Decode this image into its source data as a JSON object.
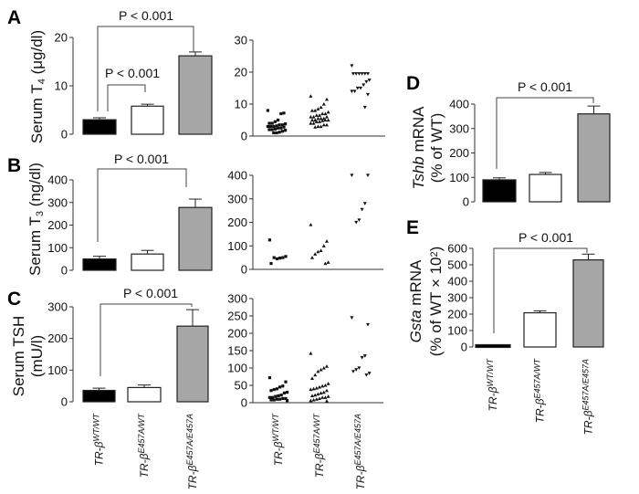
{
  "panel_labels": [
    "A",
    "B",
    "C",
    "D",
    "E"
  ],
  "colors": {
    "wt": "#000000",
    "het": "#ffffff",
    "homo": "#a6a6a6",
    "axis": "#333333"
  },
  "categories": [
    {
      "text": "TR-β",
      "sup": "WT/WT"
    },
    {
      "text": "TR-β",
      "sup": "E457A/WT"
    },
    {
      "text": "TR-β",
      "sup": "E457A/E457A"
    }
  ],
  "chart_data": [
    {
      "panel": "A",
      "type": "bar",
      "ylabel": [
        [
          {
            "t": "Serum T"
          },
          {
            "t": "4",
            "s": "sub"
          },
          {
            "t": " (μg/dl)"
          }
        ]
      ],
      "ylim": [
        0,
        20
      ],
      "yticks": [
        0,
        10,
        20
      ],
      "values": [
        3.0,
        5.8,
        16.2
      ],
      "error_upper": [
        3.4,
        6.2,
        17.0
      ],
      "brackets": [
        {
          "from": 0,
          "to": 2,
          "label": "P < 0.001"
        },
        {
          "from": 0,
          "to": 1,
          "label": "P < 0.001"
        }
      ]
    },
    {
      "panel": "A",
      "type": "scatter",
      "ylim": [
        0,
        30
      ],
      "yticks": [
        0,
        10,
        20,
        30
      ],
      "groups": [
        [
          8,
          7.2,
          7,
          5,
          4.5,
          4,
          4,
          3.8,
          3.5,
          3.5,
          3.2,
          3,
          3,
          3,
          2.8,
          2.5,
          2.5,
          2.2,
          2,
          2,
          1.8,
          1.5,
          1.2,
          1,
          1
        ],
        [
          12.5,
          11.5,
          10,
          9,
          8.5,
          8,
          8,
          7.5,
          7,
          7,
          6.5,
          6.5,
          6,
          6,
          6,
          5.5,
          5.5,
          5.5,
          5,
          5,
          5,
          5,
          4.8,
          4.5,
          4.5,
          4,
          4,
          3.5,
          3.5,
          3,
          3,
          2.8
        ],
        [
          22,
          19.5,
          19.5,
          19.5,
          19.5,
          19.5,
          19.5,
          17.5,
          17,
          16,
          15,
          15,
          14,
          14,
          13,
          9
        ]
      ]
    },
    {
      "panel": "B",
      "type": "bar",
      "ylabel": [
        [
          {
            "t": "Serum T"
          },
          {
            "t": "3",
            "s": "sub"
          },
          {
            "t": " (ng/dl)"
          }
        ]
      ],
      "ylim": [
        0,
        400
      ],
      "yticks": [
        0,
        100,
        200,
        300,
        400
      ],
      "values": [
        50,
        72,
        278
      ],
      "error_upper": [
        62,
        88,
        315
      ],
      "brackets": [
        {
          "from": 0,
          "to": 2,
          "label": "P < 0.001"
        }
      ]
    },
    {
      "panel": "B",
      "type": "scatter",
      "ylim": [
        0,
        400
      ],
      "yticks": [
        0,
        100,
        200,
        300,
        400
      ],
      "groups": [
        [
          125,
          55,
          50,
          48,
          45,
          50,
          25
        ],
        [
          190,
          120,
          100,
          80,
          75,
          65,
          50,
          30,
          25
        ],
        [
          400,
          400,
          280,
          255,
          210,
          200
        ]
      ]
    },
    {
      "panel": "C",
      "type": "bar",
      "ylabel": [
        [
          {
            "t": "Serum TSH"
          }
        ],
        [
          {
            "t": "(mU/l)"
          }
        ]
      ],
      "ylim": [
        0,
        300
      ],
      "yticks": [
        0,
        100,
        200,
        300
      ],
      "values": [
        36,
        45,
        239
      ],
      "error_upper": [
        43,
        53,
        291
      ],
      "brackets": [
        {
          "from": 0,
          "to": 2,
          "label": "P < 0.001"
        }
      ]
    },
    {
      "panel": "C",
      "type": "scatter",
      "ylim": [
        0,
        300
      ],
      "yticks": [
        0,
        50,
        100,
        150,
        200,
        250,
        300
      ],
      "groups": [
        [
          72,
          60,
          48,
          45,
          40,
          38,
          35,
          30,
          28,
          22,
          20,
          18,
          15,
          15,
          12,
          12,
          10,
          10,
          8,
          8,
          6
        ],
        [
          142,
          105,
          100,
          95,
          90,
          80,
          70,
          55,
          50,
          48,
          45,
          42,
          40,
          38,
          35,
          30,
          28,
          25,
          22,
          20,
          18,
          15,
          15,
          12,
          10,
          8,
          6,
          5
        ],
        [
          245,
          225,
          135,
          130,
          100,
          95,
          90,
          85,
          80
        ]
      ]
    },
    {
      "panel": "D",
      "type": "bar",
      "ylabel": [
        [
          {
            "t": "Tshb",
            "s": "i"
          },
          {
            "t": "  mRNA"
          }
        ],
        [
          {
            "t": "(% of WT)"
          }
        ]
      ],
      "ylim": [
        0,
        400
      ],
      "yticks": [
        0,
        100,
        200,
        300,
        400
      ],
      "values": [
        90,
        112,
        360
      ],
      "error_upper": [
        98,
        120,
        392
      ],
      "brackets": [
        {
          "from": 0,
          "to": 2,
          "label": "P < 0.001"
        }
      ]
    },
    {
      "panel": "E",
      "type": "bar",
      "ylabel": [
        [
          {
            "t": "Gsta",
            "s": "i"
          },
          {
            "t": " mRNA"
          }
        ],
        [
          {
            "t": "(% of WT × 10"
          },
          {
            "t": "2",
            "s": "sup"
          },
          {
            "t": ")"
          }
        ]
      ],
      "ylim": [
        0,
        600
      ],
      "yticks": [
        0,
        100,
        200,
        300,
        400,
        500,
        600
      ],
      "values": [
        14,
        208,
        530
      ],
      "error_upper": [
        14,
        220,
        565
      ],
      "brackets": [
        {
          "from": 0,
          "to": 2,
          "label": "P < 0.001"
        }
      ]
    }
  ]
}
